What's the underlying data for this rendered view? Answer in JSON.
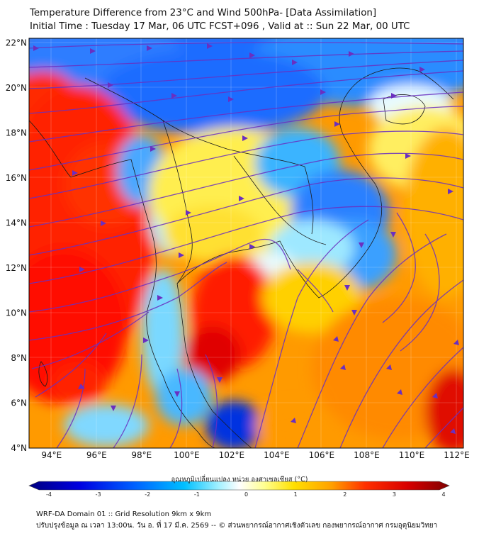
{
  "header": {
    "title": "Temperature Difference from 23°C and Wind 500hPa- [Data Assimilation]",
    "subtitle": "Initial Time : Tuesday 17 Mar, 06 UTC FCST+096 , Valid at ::  Sun 22 Mar, 00 UTC"
  },
  "map": {
    "lon_labels": [
      "94°E",
      "96°E",
      "98°E",
      "100°E",
      "102°E",
      "104°E",
      "106°E",
      "108°E",
      "110°E",
      "112°E"
    ],
    "lat_labels": [
      "22°N",
      "20°N",
      "18°N",
      "16°N",
      "14°N",
      "12°N",
      "10°N",
      "8°N",
      "6°N",
      "4°N"
    ],
    "lon_range": [
      93,
      112.3
    ],
    "lat_range": [
      4,
      22.2
    ],
    "field": "temperature difference (°C)",
    "overlay": "500hPa wind streamlines"
  },
  "colorbar": {
    "title": "อุณหภูมิเปลี่ยนแปลง หน่วย องศาเซลเซียส (°C)",
    "ticks": [
      "-4",
      "-3",
      "-2",
      "-1",
      "0",
      "1",
      "2",
      "3",
      "4"
    ],
    "range": [
      -4,
      4
    ],
    "colors": [
      "#00007f",
      "#0000d8",
      "#0050ff",
      "#00b4ff",
      "#6fe8ff",
      "#ffffff",
      "#ffff80",
      "#ffd000",
      "#ff8000",
      "#ff1800",
      "#c00000",
      "#7f0000"
    ]
  },
  "footer": {
    "line1": "WRF-DA Domain 01 :: Grid Resolution 9km x 9km",
    "line2": "ปรับปรุงข้อมูล ณ เวลา 13:00น. วัน อ. ที่ 17 มี.ค. 2569 -- © ส่วนพยากรณ์อากาศเชิงตัวเลข กองพยากรณ์อากาศ กรมอุตุนิยมวิทยา"
  }
}
